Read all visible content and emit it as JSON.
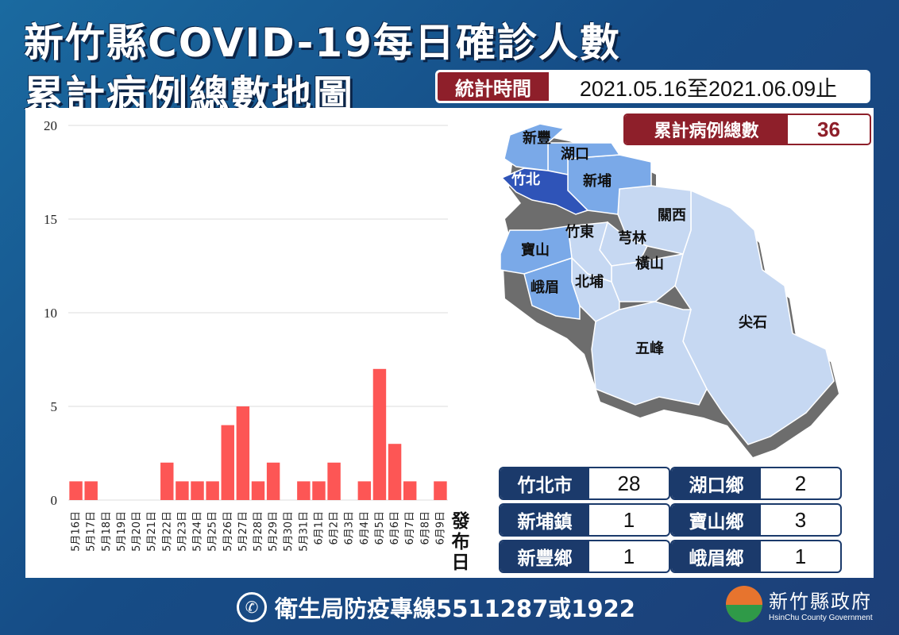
{
  "header": {
    "title_line1": "新竹縣COVID-19每日確診人數",
    "title_line2": "累計病例總數地圖",
    "period_label": "統計時間",
    "period_value": "2021.05.16至2021.06.09止"
  },
  "total": {
    "label": "累計病例總數",
    "value": "36"
  },
  "chart_data": {
    "type": "bar",
    "title": "",
    "xlabel": "發布日",
    "ylabel": "",
    "ylim": [
      0,
      20
    ],
    "yticks": [
      0,
      5,
      10,
      15,
      20
    ],
    "grid": true,
    "color": "#fd5655",
    "categories": [
      "5月16日",
      "5月17日",
      "5月18日",
      "5月19日",
      "5月20日",
      "5月21日",
      "5月22日",
      "5月23日",
      "5月24日",
      "5月25日",
      "5月26日",
      "5月27日",
      "5月28日",
      "5月29日",
      "5月30日",
      "5月31日",
      "6月1日",
      "6月2日",
      "6月3日",
      "6月4日",
      "6月5日",
      "6月6日",
      "6月7日",
      "6月8日",
      "6月9日"
    ],
    "values": [
      1,
      1,
      0,
      0,
      0,
      0,
      2,
      1,
      1,
      1,
      4,
      5,
      1,
      2,
      0,
      1,
      1,
      2,
      0,
      1,
      7,
      3,
      1,
      0,
      1
    ]
  },
  "map": {
    "regions": [
      {
        "key": "xinfeng",
        "name": "新豐",
        "color": "#7aa9e8"
      },
      {
        "key": "hukou",
        "name": "湖口",
        "color": "#7aa9e8"
      },
      {
        "key": "xinpu",
        "name": "新埔",
        "color": "#7aa9e8"
      },
      {
        "key": "zhubei",
        "name": "竹北",
        "color": "#2f54b8"
      },
      {
        "key": "guanxi",
        "name": "關西",
        "color": "#c6d8f2"
      },
      {
        "key": "zhudong",
        "name": "竹東",
        "color": "#c6d8f2"
      },
      {
        "key": "qionglin",
        "name": "芎林",
        "color": "#c6d8f2"
      },
      {
        "key": "baoshan",
        "name": "寶山",
        "color": "#7aa9e8"
      },
      {
        "key": "hengshan",
        "name": "橫山",
        "color": "#c6d8f2"
      },
      {
        "key": "emei",
        "name": "峨眉",
        "color": "#7aa9e8"
      },
      {
        "key": "beipu",
        "name": "北埔",
        "color": "#c6d8f2"
      },
      {
        "key": "jianshi",
        "name": "尖石",
        "color": "#c6d8f2"
      },
      {
        "key": "wufeng",
        "name": "五峰",
        "color": "#c6d8f2"
      }
    ]
  },
  "stats": [
    {
      "label": "竹北市",
      "value": "28"
    },
    {
      "label": "湖口鄉",
      "value": "2"
    },
    {
      "label": "新埔鎮",
      "value": "1"
    },
    {
      "label": "寶山鄉",
      "value": "3"
    },
    {
      "label": "新豐鄉",
      "value": "1"
    },
    {
      "label": "峨眉鄉",
      "value": "1"
    }
  ],
  "footer": {
    "hotline": "衛生局防疫專線5511287或1922",
    "phone_icon": "phone-icon"
  },
  "logo": {
    "name_zh": "新竹縣政府",
    "name_en": "HsinChu County Government"
  }
}
